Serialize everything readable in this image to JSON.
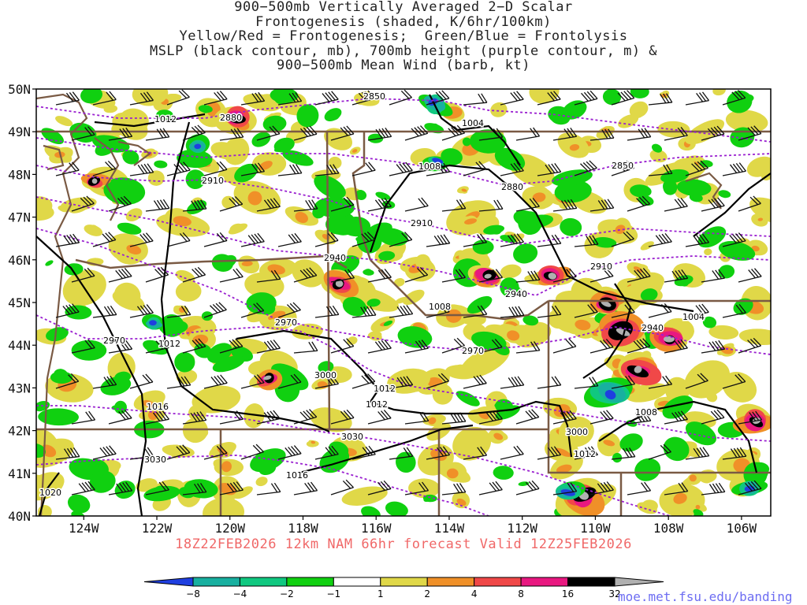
{
  "title": {
    "lines": [
      "900−500mb Vertically Averaged 2−D Scalar",
      "Frontogenesis (shaded, K/6hr/100km)",
      "Yellow/Red = Frontogenesis;  Green/Blue = Frontolysis",
      "MSLP (black contour, mb), 700mb height (purple contour, m) &",
      "900−500mb Mean Wind (barb, kt)"
    ]
  },
  "map": {
    "lat_range": [
      40,
      50
    ],
    "lon_range": [
      -125.3,
      -105.2
    ],
    "lat_labels": [
      "50N",
      "49N",
      "48N",
      "47N",
      "46N",
      "45N",
      "44N",
      "43N",
      "42N",
      "41N",
      "40N"
    ],
    "lon_labels": [
      "124W",
      "122W",
      "120W",
      "118W",
      "116W",
      "114W",
      "112W",
      "110W",
      "108W",
      "106W"
    ],
    "isobar_labels": [
      "1012",
      "1004",
      "1008",
      "1008",
      "1012",
      "1016",
      "1012",
      "1012",
      "1004",
      "1008",
      "1012",
      "1016",
      "1020"
    ],
    "height_labels": [
      "2850",
      "2880",
      "2910",
      "2880",
      "2850",
      "2910",
      "2940",
      "2910",
      "2940",
      "2940",
      "2970",
      "2970",
      "2970",
      "3000",
      "3030",
      "3030",
      "3000"
    ]
  },
  "legend": {
    "levels": [
      "−8",
      "−4",
      "−2",
      "−1",
      "1",
      "2",
      "4",
      "8",
      "16",
      "32"
    ],
    "colors": [
      "#1f3fe0",
      "#18b0a0",
      "#10c880",
      "#10d010",
      "#ffffff",
      "#e0d848",
      "#f09028",
      "#f04848",
      "#e81880",
      "#000000",
      "#b0b0b0"
    ]
  },
  "footer": "18Z22FEB2026 12km NAM 66hr forecast Valid 12Z25FEB2026",
  "credit": "moe.met.fsu.edu/banding"
}
